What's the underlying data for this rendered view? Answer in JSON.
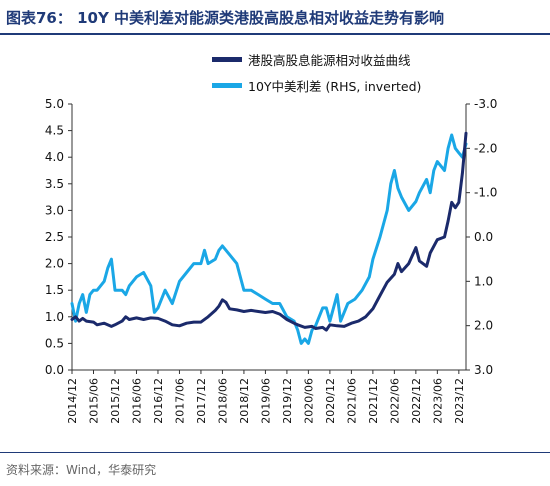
{
  "title": "图表76：  10Y 中美利差对能源类港股高股息相对收益走势有影响",
  "source": "资料来源：Wind，华泰研究",
  "colors": {
    "title": "#1f3a78",
    "series_dark": "#1b2a6b",
    "series_light": "#1aa7e6"
  },
  "chart_data": {
    "type": "line",
    "title": "图表76：  10Y 中美利差对能源类港股高股息相对收益走势有影响",
    "x_range": [
      "2014-12",
      "2024-02"
    ],
    "x_tick_labels": [
      "2014/12",
      "2015/06",
      "2015/12",
      "2016/06",
      "2016/12",
      "2017/06",
      "2017/12",
      "2018/06",
      "2018/12",
      "2019/06",
      "2019/12",
      "2020/06",
      "2020/12",
      "2021/06",
      "2021/12",
      "2022/06",
      "2022/12",
      "2023/06",
      "2023/12"
    ],
    "y_left": {
      "min": 0.0,
      "max": 5.0,
      "step": 0.5,
      "tick_labels": [
        "0.0",
        "0.5",
        "1.0",
        "1.5",
        "2.0",
        "2.5",
        "3.0",
        "3.5",
        "4.0",
        "4.5",
        "5.0"
      ]
    },
    "y_right": {
      "min": -3.0,
      "max": 3.0,
      "inverted": true,
      "tick_labels": [
        "-3.0",
        "-2.0",
        "-1.0",
        "0.0",
        "1.0",
        "2.0",
        "3.0"
      ]
    },
    "grid": false,
    "legend_placement": "top-center",
    "series": [
      {
        "name": "港股高股息能源相对收益曲线",
        "axis": "left",
        "color": "#1b2a6b",
        "points": [
          [
            "2014-12",
            0.95
          ],
          [
            "2015-01",
            1.0
          ],
          [
            "2015-02",
            0.92
          ],
          [
            "2015-03",
            0.97
          ],
          [
            "2015-04",
            0.92
          ],
          [
            "2015-06",
            0.9
          ],
          [
            "2015-07",
            0.85
          ],
          [
            "2015-09",
            0.88
          ],
          [
            "2015-11",
            0.82
          ],
          [
            "2015-12",
            0.85
          ],
          [
            "2016-02",
            0.92
          ],
          [
            "2016-03",
            1.0
          ],
          [
            "2016-04",
            0.95
          ],
          [
            "2016-06",
            0.98
          ],
          [
            "2016-08",
            0.95
          ],
          [
            "2016-10",
            0.98
          ],
          [
            "2016-12",
            0.97
          ],
          [
            "2017-02",
            0.92
          ],
          [
            "2017-04",
            0.85
          ],
          [
            "2017-06",
            0.83
          ],
          [
            "2017-08",
            0.88
          ],
          [
            "2017-10",
            0.9
          ],
          [
            "2017-12",
            0.9
          ],
          [
            "2018-02",
            1.0
          ],
          [
            "2018-04",
            1.12
          ],
          [
            "2018-05",
            1.2
          ],
          [
            "2018-06",
            1.32
          ],
          [
            "2018-07",
            1.27
          ],
          [
            "2018-08",
            1.15
          ],
          [
            "2018-10",
            1.13
          ],
          [
            "2018-12",
            1.1
          ],
          [
            "2019-02",
            1.12
          ],
          [
            "2019-04",
            1.1
          ],
          [
            "2019-06",
            1.08
          ],
          [
            "2019-08",
            1.1
          ],
          [
            "2019-10",
            1.05
          ],
          [
            "2019-12",
            0.95
          ],
          [
            "2020-02",
            0.88
          ],
          [
            "2020-03",
            0.85
          ],
          [
            "2020-05",
            0.8
          ],
          [
            "2020-07",
            0.82
          ],
          [
            "2020-08",
            0.78
          ],
          [
            "2020-10",
            0.8
          ],
          [
            "2020-11",
            0.75
          ],
          [
            "2020-12",
            0.85
          ],
          [
            "2021-02",
            0.83
          ],
          [
            "2021-04",
            0.82
          ],
          [
            "2021-06",
            0.88
          ],
          [
            "2021-08",
            0.92
          ],
          [
            "2021-10",
            1.0
          ],
          [
            "2021-12",
            1.15
          ],
          [
            "2022-02",
            1.4
          ],
          [
            "2022-04",
            1.65
          ],
          [
            "2022-06",
            1.8
          ],
          [
            "2022-07",
            2.0
          ],
          [
            "2022-08",
            1.85
          ],
          [
            "2022-10",
            2.0
          ],
          [
            "2022-12",
            2.3
          ],
          [
            "2023-01",
            2.05
          ],
          [
            "2023-03",
            1.95
          ],
          [
            "2023-04",
            2.2
          ],
          [
            "2023-06",
            2.45
          ],
          [
            "2023-08",
            2.5
          ],
          [
            "2023-09",
            2.8
          ],
          [
            "2023-10",
            3.15
          ],
          [
            "2023-11",
            3.05
          ],
          [
            "2023-12",
            3.15
          ],
          [
            "2024-01",
            3.7
          ],
          [
            "2024-02",
            4.45
          ]
        ]
      },
      {
        "name": "10Y中美利差 (RHS, inverted)",
        "axis": "right",
        "color": "#1aa7e6",
        "points": [
          [
            "2014-12",
            1.5
          ],
          [
            "2015-01",
            1.9
          ],
          [
            "2015-02",
            1.5
          ],
          [
            "2015-03",
            1.3
          ],
          [
            "2015-04",
            1.7
          ],
          [
            "2015-05",
            1.3
          ],
          [
            "2015-06",
            1.2
          ],
          [
            "2015-07",
            1.2
          ],
          [
            "2015-09",
            1.0
          ],
          [
            "2015-10",
            0.7
          ],
          [
            "2015-11",
            0.5
          ],
          [
            "2015-12",
            1.2
          ],
          [
            "2016-02",
            1.2
          ],
          [
            "2016-03",
            1.3
          ],
          [
            "2016-04",
            1.1
          ],
          [
            "2016-06",
            0.9
          ],
          [
            "2016-08",
            0.8
          ],
          [
            "2016-10",
            1.1
          ],
          [
            "2016-11",
            1.7
          ],
          [
            "2016-12",
            1.6
          ],
          [
            "2017-02",
            1.2
          ],
          [
            "2017-04",
            1.5
          ],
          [
            "2017-06",
            1.0
          ],
          [
            "2017-08",
            0.8
          ],
          [
            "2017-10",
            0.6
          ],
          [
            "2017-12",
            0.6
          ],
          [
            "2018-01",
            0.3
          ],
          [
            "2018-02",
            0.6
          ],
          [
            "2018-04",
            0.5
          ],
          [
            "2018-05",
            0.3
          ],
          [
            "2018-06",
            0.2
          ],
          [
            "2018-08",
            0.4
          ],
          [
            "2018-10",
            0.6
          ],
          [
            "2018-12",
            1.2
          ],
          [
            "2019-02",
            1.2
          ],
          [
            "2019-04",
            1.3
          ],
          [
            "2019-06",
            1.4
          ],
          [
            "2019-08",
            1.5
          ],
          [
            "2019-10",
            1.5
          ],
          [
            "2019-12",
            1.8
          ],
          [
            "2020-02",
            1.9
          ],
          [
            "2020-03",
            2.1
          ],
          [
            "2020-04",
            2.4
          ],
          [
            "2020-05",
            2.3
          ],
          [
            "2020-06",
            2.4
          ],
          [
            "2020-07",
            2.1
          ],
          [
            "2020-08",
            2.0
          ],
          [
            "2020-10",
            1.6
          ],
          [
            "2020-11",
            1.6
          ],
          [
            "2020-12",
            1.9
          ],
          [
            "2021-02",
            1.3
          ],
          [
            "2021-03",
            1.9
          ],
          [
            "2021-05",
            1.5
          ],
          [
            "2021-07",
            1.4
          ],
          [
            "2021-09",
            1.2
          ],
          [
            "2021-11",
            0.9
          ],
          [
            "2021-12",
            0.5
          ],
          [
            "2022-02",
            0.0
          ],
          [
            "2022-04",
            -0.6
          ],
          [
            "2022-05",
            -1.2
          ],
          [
            "2022-06",
            -1.5
          ],
          [
            "2022-07",
            -1.1
          ],
          [
            "2022-08",
            -0.9
          ],
          [
            "2022-10",
            -0.6
          ],
          [
            "2022-12",
            -0.8
          ],
          [
            "2023-01",
            -1.0
          ],
          [
            "2023-03",
            -1.3
          ],
          [
            "2023-04",
            -1.0
          ],
          [
            "2023-05",
            -1.5
          ],
          [
            "2023-06",
            -1.7
          ],
          [
            "2023-08",
            -1.5
          ],
          [
            "2023-09",
            -2.0
          ],
          [
            "2023-10",
            -2.3
          ],
          [
            "2023-11",
            -2.0
          ],
          [
            "2023-12",
            -1.9
          ],
          [
            "2024-01",
            -1.8
          ],
          [
            "2024-02",
            -2.1
          ]
        ]
      }
    ]
  }
}
